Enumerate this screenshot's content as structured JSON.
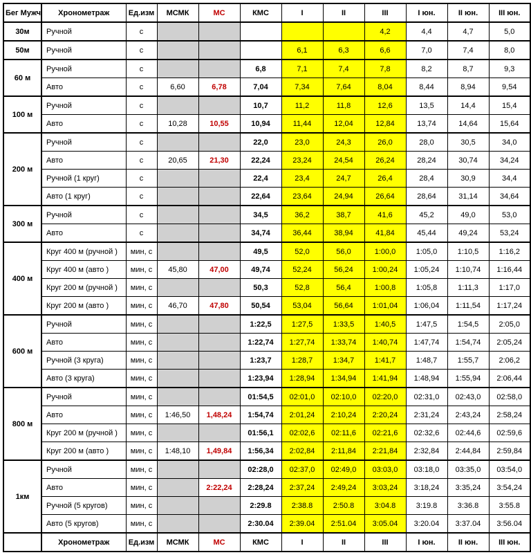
{
  "headers": {
    "dist_title": "Бег Мужчины",
    "chrono": "Хронометраж",
    "unit": "Ед.изм",
    "cols": [
      "МСМК",
      "МС",
      "КМС",
      "I",
      "II",
      "III",
      "I юн.",
      "II юн.",
      "III юн."
    ]
  },
  "col_styles": {
    "red_header_idx": 1,
    "gray_idx": [
      0,
      1
    ],
    "yellow_idx": [
      3,
      4,
      5
    ],
    "bold_idx": [
      2
    ]
  },
  "groups": [
    {
      "distance": "30м",
      "rows": [
        {
          "chrono": "Ручной",
          "unit": "с",
          "vals": [
            "",
            "",
            "",
            "",
            "",
            "4,2",
            "4,4",
            "4,7",
            "5,0"
          ]
        }
      ]
    },
    {
      "distance": "50м",
      "rows": [
        {
          "chrono": "Ручной",
          "unit": "с",
          "vals": [
            "",
            "",
            "",
            "6,1",
            "6,3",
            "6,6",
            "7,0",
            "7,4",
            "8,0"
          ]
        }
      ]
    },
    {
      "distance": "60 м",
      "rows": [
        {
          "chrono": "Ручной",
          "unit": "с",
          "vals": [
            "",
            "",
            "6,8",
            "7,1",
            "7,4",
            "7,8",
            "8,2",
            "8,7",
            "9,3"
          ]
        },
        {
          "chrono": "Авто",
          "unit": "с",
          "vals": [
            "6,60",
            "6,78",
            "7,04",
            "7,34",
            "7,64",
            "8,04",
            "8,44",
            "8,94",
            "9,54"
          ]
        }
      ]
    },
    {
      "distance": "100 м",
      "rows": [
        {
          "chrono": "Ручной",
          "unit": "с",
          "vals": [
            "",
            "",
            "10,7",
            "11,2",
            "11,8",
            "12,6",
            "13,5",
            "14,4",
            "15,4"
          ]
        },
        {
          "chrono": "Авто",
          "unit": "с",
          "vals": [
            "10,28",
            "10,55",
            "10,94",
            "11,44",
            "12,04",
            "12,84",
            "13,74",
            "14,64",
            "15,64"
          ]
        }
      ]
    },
    {
      "distance": "200 м",
      "rows": [
        {
          "chrono": "Ручной",
          "unit": "с",
          "vals": [
            "",
            "",
            "22,0",
            "23,0",
            "24,3",
            "26,0",
            "28,0",
            "30,5",
            "34,0"
          ]
        },
        {
          "chrono": "Авто",
          "unit": "с",
          "vals": [
            "20,65",
            "21,30",
            "22,24",
            "23,24",
            "24,54",
            "26,24",
            "28,24",
            "30,74",
            "34,24"
          ]
        },
        {
          "chrono": "Ручной  (1 круг)",
          "unit": "с",
          "vals": [
            "",
            "",
            "22,4",
            "23,4",
            "24,7",
            "26,4",
            "28,4",
            "30,9",
            "34,4"
          ]
        },
        {
          "chrono": "Авто  (1 круг)",
          "unit": "с",
          "vals": [
            "",
            "",
            "22,64",
            "23,64",
            "24,94",
            "26,64",
            "28,64",
            "31,14",
            "34,64"
          ]
        }
      ]
    },
    {
      "distance": "300 м",
      "rows": [
        {
          "chrono": "Ручной",
          "unit": "с",
          "vals": [
            "",
            "",
            "34,5",
            "36,2",
            "38,7",
            "41,6",
            "45,2",
            "49,0",
            "53,0"
          ]
        },
        {
          "chrono": "Авто",
          "unit": "с",
          "vals": [
            "",
            "",
            "34,74",
            "36,44",
            "38,94",
            "41,84",
            "45,44",
            "49,24",
            "53,24"
          ]
        }
      ]
    },
    {
      "distance": "400 м",
      "rows": [
        {
          "chrono": "Круг 400 м (ручной )",
          "unit": "мин, с",
          "vals": [
            "",
            "",
            "49,5",
            "52,0",
            "56,0",
            "1:00,0",
            "1:05,0",
            "1:10,5",
            "1:16,2"
          ]
        },
        {
          "chrono": "Круг 400 м (авто )",
          "unit": "мин, с",
          "vals": [
            "45,80",
            "47,00",
            "49,74",
            "52,24",
            "56,24",
            "1:00,24",
            "1:05,24",
            "1:10,74",
            "1:16,44"
          ]
        },
        {
          "chrono": "Круг 200 м (ручной )",
          "unit": "мин, с",
          "vals": [
            "",
            "",
            "50,3",
            "52,8",
            "56,4",
            "1:00,8",
            "1:05,8",
            "1:11,3",
            "1:17,0"
          ]
        },
        {
          "chrono": "Круг 200 м (авто )",
          "unit": "мин, с",
          "vals": [
            "46,70",
            "47,80",
            "50,54",
            "53,04",
            "56,64",
            "1:01,04",
            "1:06,04",
            "1:11,54",
            "1:17,24"
          ]
        }
      ]
    },
    {
      "distance": "600 м",
      "rows": [
        {
          "chrono": "Ручной",
          "unit": "мин, с",
          "vals": [
            "",
            "",
            "1:22,5",
            "1:27,5",
            "1:33,5",
            "1:40,5",
            "1:47,5",
            "1:54,5",
            "2:05,0"
          ]
        },
        {
          "chrono": "Авто",
          "unit": "мин, с",
          "vals": [
            "",
            "",
            "1:22,74",
            "1:27,74",
            "1:33,74",
            "1:40,74",
            "1:47,74",
            "1:54,74",
            "2:05,24"
          ]
        },
        {
          "chrono": "Ручной  (3 круга)",
          "unit": "мин, с",
          "vals": [
            "",
            "",
            "1:23,7",
            "1:28,7",
            "1:34,7",
            "1:41,7",
            "1:48,7",
            "1:55,7",
            "2:06,2"
          ]
        },
        {
          "chrono": "Авто  (3 круга)",
          "unit": "мин, с",
          "vals": [
            "",
            "",
            "1:23,94",
            "1:28,94",
            "1:34,94",
            "1:41,94",
            "1:48,94",
            "1:55,94",
            "2:06,44"
          ]
        }
      ]
    },
    {
      "distance": "800 м",
      "rows": [
        {
          "chrono": "Ручной",
          "unit": "мин, с",
          "vals": [
            "",
            "",
            "01:54,5",
            "02:01,0",
            "02:10,0",
            "02:20,0",
            "02:31,0",
            "02:43,0",
            "02:58,0"
          ]
        },
        {
          "chrono": "Авто",
          "unit": "мин, с",
          "vals": [
            "1:46,50",
            "1,48,24",
            "1:54,74",
            "2:01,24",
            "2:10,24",
            "2:20,24",
            "2:31,24",
            "2:43,24",
            "2:58,24"
          ]
        },
        {
          "chrono": "Круг 200 м (ручной )",
          "unit": "мин, с",
          "vals": [
            "",
            "",
            "01:56,1",
            "02:02,6",
            "02:11,6",
            "02:21,6",
            "02:32,6",
            "02:44,6",
            "02:59,6"
          ]
        },
        {
          "chrono": "Круг 200 м (авто )",
          "unit": "мин, с",
          "vals": [
            "1:48,10",
            "1,49,84",
            "1:56,34",
            "2:02,84",
            "2:11,84",
            "2:21,84",
            "2:32,84",
            "2:44,84",
            "2:59,84"
          ]
        }
      ]
    },
    {
      "distance": "1км",
      "rows": [
        {
          "chrono": "Ручной",
          "unit": "мин, с",
          "vals": [
            "",
            "",
            "02:28,0",
            "02:37,0",
            "02:49,0",
            "03:03,0",
            "03:18,0",
            "03:35,0",
            "03:54,0"
          ]
        },
        {
          "chrono": "Авто",
          "unit": "мин, с",
          "vals": [
            "",
            "2:22,24",
            "2:28,24",
            "2:37,24",
            "2:49,24",
            "3:03,24",
            "3:18,24",
            "3:35,24",
            "3:54,24"
          ]
        },
        {
          "chrono": "Ручной  (5 кругов)",
          "unit": "мин, с",
          "vals": [
            "",
            "",
            "2:29.8",
            "2:38.8",
            "2:50.8",
            "3:04.8",
            "3:19.8",
            "3:36.8",
            "3:55.8"
          ]
        },
        {
          "chrono": "Авто  (5 кругов)",
          "unit": "мин, с",
          "vals": [
            "",
            "",
            "2:30.04",
            "2:39.04",
            "2:51.04",
            "3:05.04",
            "3:20.04",
            "3:37.04",
            "3:56.04"
          ]
        }
      ]
    }
  ]
}
